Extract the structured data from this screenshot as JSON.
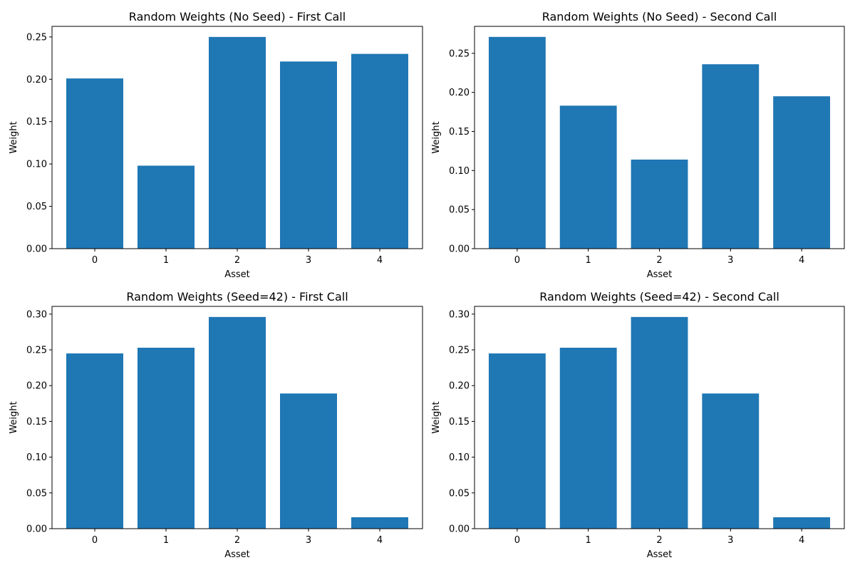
{
  "figure": {
    "background": "#ffffff",
    "bar_color": "#1f77b4"
  },
  "chart_data": [
    {
      "type": "bar",
      "title": "Random Weights (No Seed) - First Call",
      "xlabel": "Asset",
      "ylabel": "Weight",
      "categories": [
        "0",
        "1",
        "2",
        "3",
        "4"
      ],
      "values": [
        0.201,
        0.098,
        0.25,
        0.221,
        0.23
      ],
      "ylim": [
        0,
        0.2625
      ],
      "yticks": [
        "0.00",
        "0.05",
        "0.10",
        "0.15",
        "0.20",
        "0.25"
      ],
      "grid": false
    },
    {
      "type": "bar",
      "title": "Random Weights (No Seed) - Second Call",
      "xlabel": "Asset",
      "ylabel": "Weight",
      "categories": [
        "0",
        "1",
        "2",
        "3",
        "4"
      ],
      "values": [
        0.271,
        0.183,
        0.114,
        0.236,
        0.195
      ],
      "ylim": [
        0,
        0.2845
      ],
      "yticks": [
        "0.00",
        "0.05",
        "0.10",
        "0.15",
        "0.20",
        "0.25"
      ],
      "grid": false
    },
    {
      "type": "bar",
      "title": "Random Weights (Seed=42) - First Call",
      "xlabel": "Asset",
      "ylabel": "Weight",
      "categories": [
        "0",
        "1",
        "2",
        "3",
        "4"
      ],
      "values": [
        0.245,
        0.253,
        0.296,
        0.189,
        0.016
      ],
      "ylim": [
        0,
        0.3108
      ],
      "yticks": [
        "0.00",
        "0.05",
        "0.10",
        "0.15",
        "0.20",
        "0.25",
        "0.30"
      ],
      "grid": false
    },
    {
      "type": "bar",
      "title": "Random Weights (Seed=42) - Second Call",
      "xlabel": "Asset",
      "ylabel": "Weight",
      "categories": [
        "0",
        "1",
        "2",
        "3",
        "4"
      ],
      "values": [
        0.245,
        0.253,
        0.296,
        0.189,
        0.016
      ],
      "ylim": [
        0,
        0.3108
      ],
      "yticks": [
        "0.00",
        "0.05",
        "0.10",
        "0.15",
        "0.20",
        "0.25",
        "0.30"
      ],
      "grid": false
    }
  ]
}
